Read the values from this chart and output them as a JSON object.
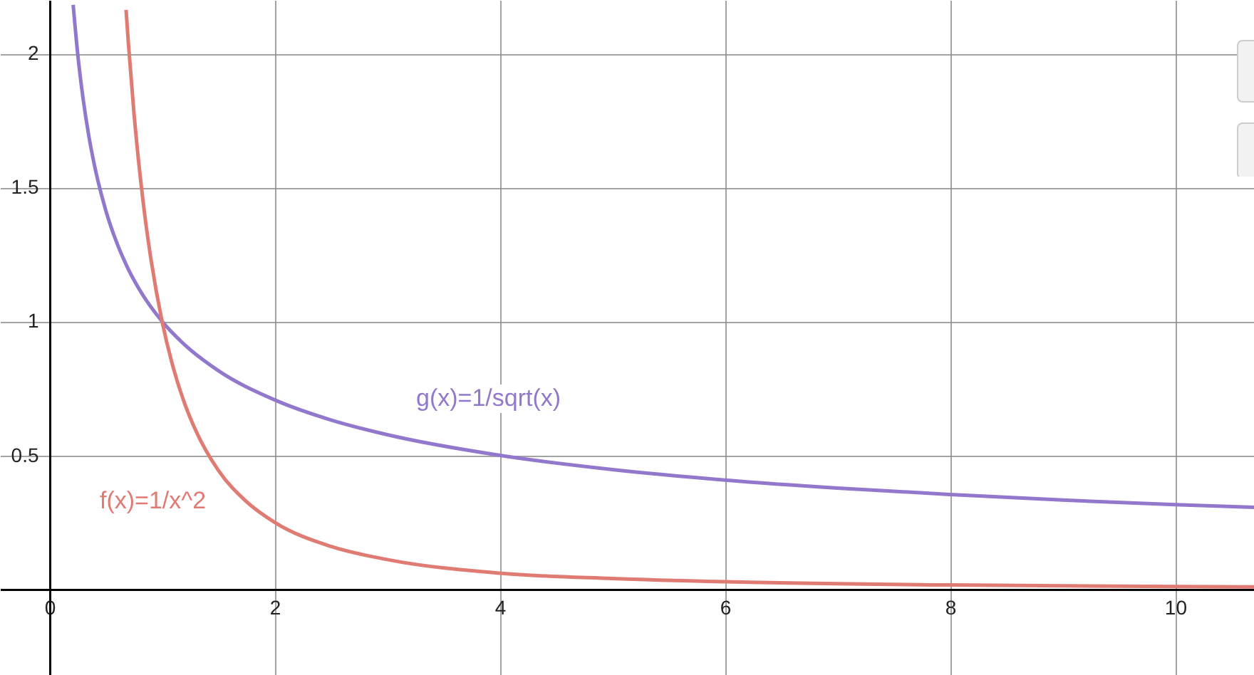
{
  "chart_data": {
    "type": "line",
    "xlim": [
      -0.44,
      10.7
    ],
    "ylim": [
      -0.32,
      2.2
    ],
    "xticks": [
      0,
      2,
      4,
      6,
      8,
      10
    ],
    "yticks": [
      0.5,
      1,
      1.5,
      2
    ],
    "grid": true,
    "series": [
      {
        "color": "#9278cc",
        "x": [
          0.21,
          0.25,
          0.3,
          0.35,
          0.4,
          0.5,
          0.6,
          0.7,
          0.8,
          1,
          1.2,
          1.5,
          2,
          2.5,
          3,
          4,
          5,
          6,
          7,
          8,
          9,
          10,
          10.7
        ],
        "values": [
          2.182,
          2,
          1.826,
          1.69,
          1.581,
          1.414,
          1.291,
          1.195,
          1.118,
          1,
          0.913,
          0.816,
          0.707,
          0.632,
          0.577,
          0.5,
          0.447,
          0.408,
          0.378,
          0.354,
          0.333,
          0.316,
          0.306
        ]
      },
      {
        "color": "#e07b74",
        "x": [
          0.68,
          0.7,
          0.75,
          0.8,
          0.85,
          0.9,
          1,
          1.1,
          1.2,
          1.3,
          1.5,
          1.75,
          2,
          2.5,
          3,
          4,
          5,
          6,
          8,
          10,
          10.7
        ],
        "values": [
          2.163,
          2.041,
          1.778,
          1.563,
          1.384,
          1.235,
          1,
          0.826,
          0.694,
          0.592,
          0.444,
          0.327,
          0.25,
          0.16,
          0.111,
          0.06,
          0.04,
          0.028,
          0.016,
          0.01,
          0.009
        ]
      }
    ],
    "annotations": [
      "g(x)=1/sqrt(x)",
      "f(x)=1/x^2"
    ]
  }
}
